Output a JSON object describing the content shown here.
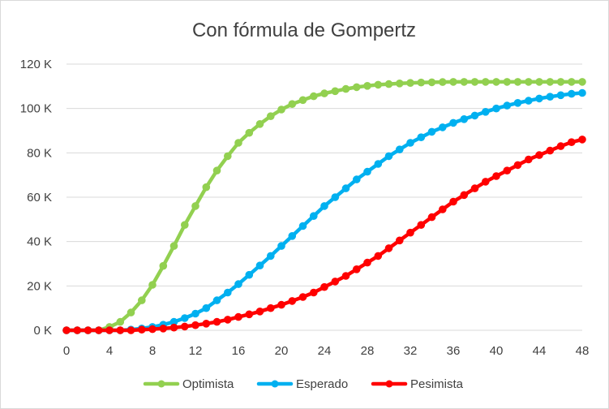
{
  "chart_data": {
    "type": "line",
    "title": "Con fórmula de Gompertz",
    "xlabel": "",
    "ylabel": "",
    "xlim": [
      0,
      48
    ],
    "ylim": [
      0,
      120000
    ],
    "x_ticks": [
      "0",
      "4",
      "8",
      "12",
      "16",
      "20",
      "24",
      "28",
      "32",
      "36",
      "40",
      "44",
      "48"
    ],
    "y_ticks": [
      "0 K",
      "20 K",
      "40 K",
      "60 K",
      "80 K",
      "100 K",
      "120 K"
    ],
    "grid": "horizontal",
    "legend_position": "bottom",
    "x": [
      0,
      1,
      2,
      3,
      4,
      5,
      6,
      7,
      8,
      9,
      10,
      11,
      12,
      13,
      14,
      15,
      16,
      17,
      18,
      19,
      20,
      21,
      22,
      23,
      24,
      25,
      26,
      27,
      28,
      29,
      30,
      31,
      32,
      33,
      34,
      35,
      36,
      37,
      38,
      39,
      40,
      41,
      42,
      43,
      44,
      45,
      46,
      47,
      48
    ],
    "series": [
      {
        "name": "Optimista",
        "color": "#92d050",
        "values": [
          0,
          0,
          0,
          0,
          1500,
          3800,
          8000,
          13500,
          20500,
          29000,
          38000,
          47500,
          56000,
          64500,
          72000,
          78500,
          84500,
          89000,
          93000,
          96500,
          99500,
          102000,
          103800,
          105500,
          106800,
          107800,
          108800,
          109600,
          110200,
          110700,
          111000,
          111300,
          111500,
          111700,
          111800,
          111900,
          112000,
          112000,
          112000,
          112000,
          112000,
          112000,
          112000,
          112000,
          112000,
          112000,
          112000,
          112000,
          112000
        ]
      },
      {
        "name": "Esperado",
        "color": "#00b0f0",
        "values": [
          0,
          0,
          0,
          0,
          0,
          0,
          300,
          800,
          1500,
          2500,
          3800,
          5500,
          7500,
          10000,
          13500,
          17000,
          20800,
          25000,
          29200,
          33500,
          38000,
          42500,
          47000,
          51500,
          56000,
          60000,
          64000,
          68000,
          71500,
          75000,
          78500,
          81500,
          84500,
          87000,
          89500,
          91500,
          93500,
          95200,
          96800,
          98500,
          100000,
          101300,
          102500,
          103500,
          104500,
          105300,
          106000,
          106600,
          107000
        ]
      },
      {
        "name": "Pesimista",
        "color": "#ff0000",
        "values": [
          0,
          0,
          0,
          0,
          0,
          0,
          0,
          300,
          500,
          800,
          1200,
          1700,
          2300,
          3000,
          3800,
          4800,
          6000,
          7200,
          8500,
          10000,
          11500,
          13200,
          15000,
          17000,
          19500,
          22000,
          24500,
          27500,
          30500,
          33500,
          37000,
          40500,
          44000,
          47500,
          51000,
          54500,
          58000,
          61000,
          64000,
          67000,
          69500,
          72000,
          74500,
          77000,
          79000,
          81000,
          83000,
          84800,
          86000
        ]
      }
    ]
  }
}
